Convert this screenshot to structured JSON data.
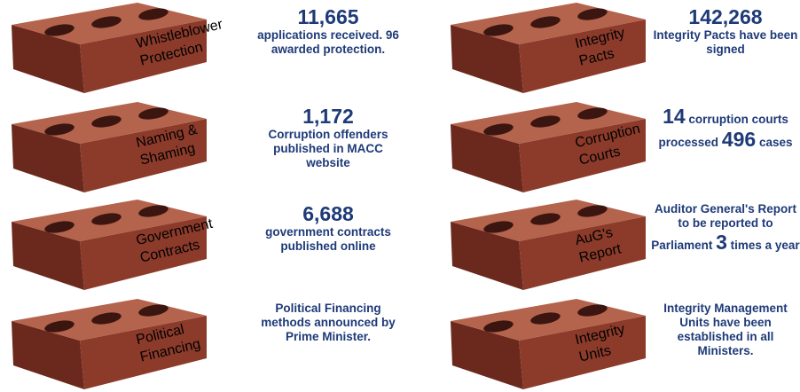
{
  "items": [
    {
      "label_lines": [
        "Whistleblower",
        "Protection"
      ],
      "description": [
        {
          "text": "11,665",
          "big": true,
          "block": true
        },
        {
          "text": "applications received. 96 awarded protection."
        }
      ]
    },
    {
      "label_lines": [
        "Naming &",
        "Shaming"
      ],
      "description": [
        {
          "text": "1,172",
          "big": true,
          "block": true
        },
        {
          "text": "Corruption offenders published in MACC website"
        }
      ]
    },
    {
      "label_lines": [
        "Government",
        "Contracts"
      ],
      "description": [
        {
          "text": "6,688",
          "big": true,
          "block": true
        },
        {
          "text": "government contracts published online"
        }
      ]
    },
    {
      "label_lines": [
        "Political",
        "Financing"
      ],
      "description": [
        {
          "text": "Political Financing methods announced by Prime Minister."
        }
      ]
    },
    {
      "label_lines": [
        "Integrity",
        "Pacts"
      ],
      "description": [
        {
          "text": "142,268",
          "big": true,
          "block": true
        },
        {
          "text": "Integrity Pacts have been signed"
        }
      ]
    },
    {
      "label_lines": [
        "Corruption",
        "Courts"
      ],
      "description": [
        {
          "text": "14",
          "big": true
        },
        {
          "text": " corruption courts processed "
        },
        {
          "text": "496",
          "big": true
        },
        {
          "text": " cases"
        }
      ]
    },
    {
      "label_lines": [
        "AuG's",
        "Report"
      ],
      "description": [
        {
          "text": "Auditor General's Report to be reported to Parliament "
        },
        {
          "text": "3",
          "big": true
        },
        {
          "text": " times a year"
        }
      ]
    },
    {
      "label_lines": [
        "Integrity",
        "Units"
      ],
      "description": [
        {
          "text": "Integrity Management Units have been established in all Ministers."
        }
      ]
    }
  ]
}
